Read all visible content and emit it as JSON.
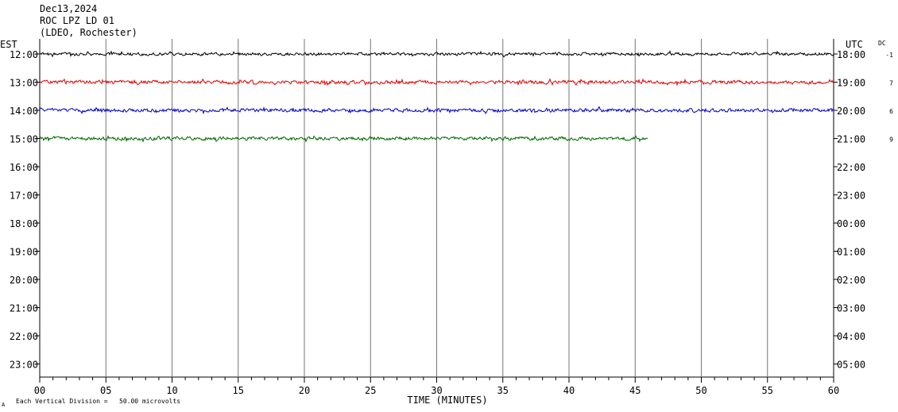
{
  "header": {
    "date": "Dec13,2024",
    "station": "ROC LPZ LD 01",
    "network": "(LDEO, Rochester)"
  },
  "left_axis_title": "EST",
  "right_axis_title": "UTC",
  "dc_title": "DC",
  "footer": {
    "scale_note": "Each Vertical Division =   50.00 microvolts",
    "corner_mark": "A"
  },
  "chart_data": {
    "type": "line",
    "title": "",
    "xlabel": "TIME (MINUTES)",
    "ylabel": "",
    "xlim": [
      0,
      60
    ],
    "x_ticks": [
      "00",
      "05",
      "10",
      "15",
      "20",
      "25",
      "30",
      "35",
      "40",
      "45",
      "50",
      "55",
      "60"
    ],
    "rows_est": [
      "12:00",
      "13:00",
      "14:00",
      "15:00",
      "16:00",
      "17:00",
      "18:00",
      "19:00",
      "20:00",
      "21:00",
      "22:00",
      "23:00"
    ],
    "rows_utc": [
      "18:00",
      "19:00",
      "20:00",
      "21:00",
      "22:00",
      "23:00",
      "00:00",
      "01:00",
      "02:00",
      "03:00",
      "04:00",
      "05:00"
    ],
    "grid": "vertical lines every 5 minutes",
    "series": [
      {
        "row": "12:00",
        "color": "#000000",
        "dc": "-1",
        "end_minute": 60,
        "amplitude": 2.5,
        "seed": 11
      },
      {
        "row": "13:00",
        "color": "#dd0000",
        "dc": "7",
        "end_minute": 60,
        "amplitude": 3.0,
        "seed": 23
      },
      {
        "row": "14:00",
        "color": "#0000cc",
        "dc": "6",
        "end_minute": 60,
        "amplitude": 3.0,
        "seed": 37
      },
      {
        "row": "15:00",
        "color": "#006600",
        "dc": "9",
        "end_minute": 46,
        "amplitude": 3.0,
        "seed": 53
      }
    ]
  }
}
